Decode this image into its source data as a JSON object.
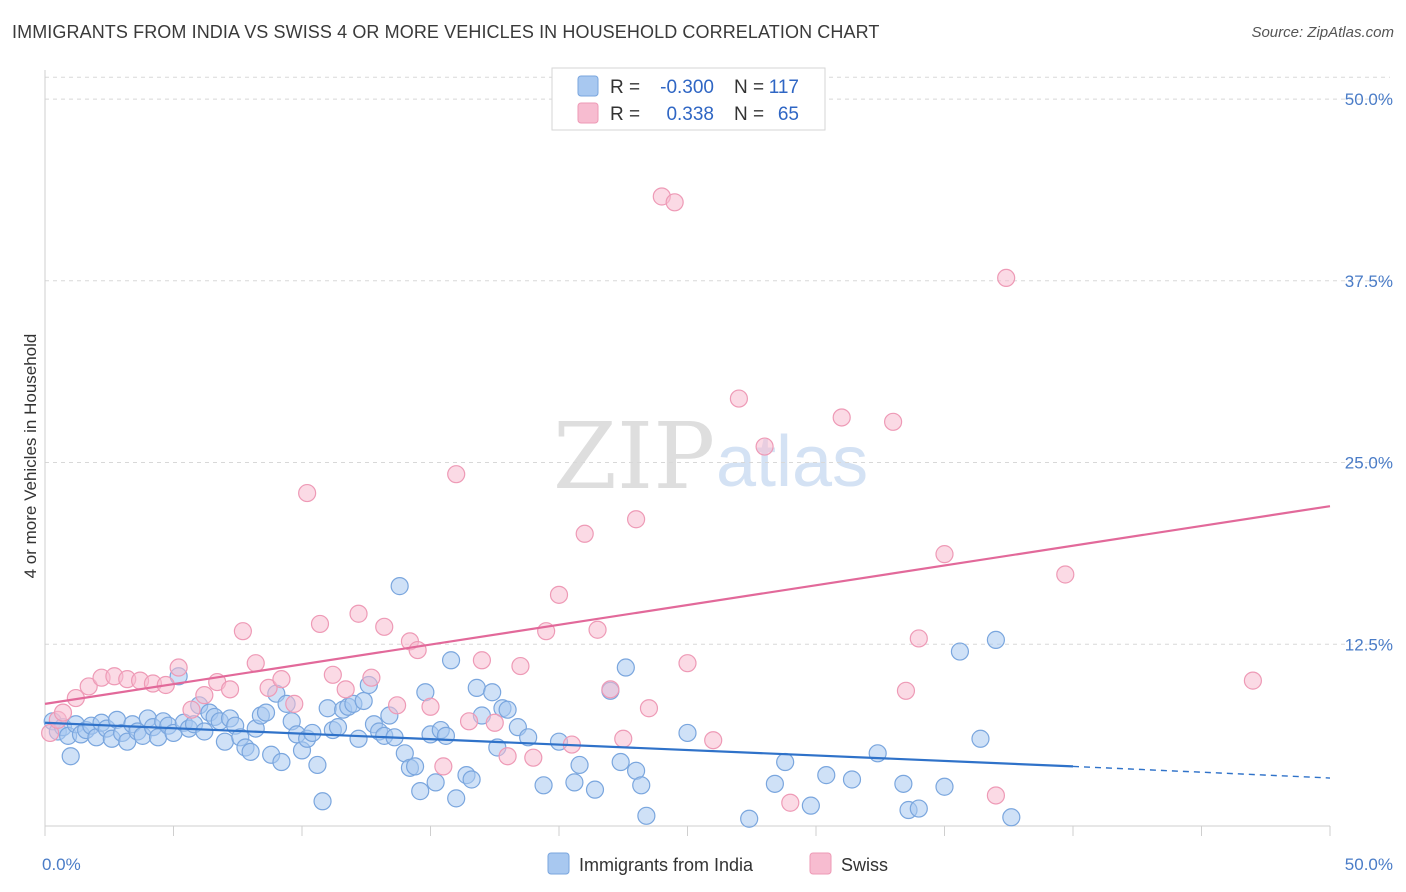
{
  "title": "IMMIGRANTS FROM INDIA VS SWISS 4 OR MORE VEHICLES IN HOUSEHOLD CORRELATION CHART",
  "source": "Source: ZipAtlas.com",
  "watermark": {
    "zip": "ZIP",
    "atlas": "atlas"
  },
  "colors": {
    "india_fill": "#a8c8f0",
    "india_stroke": "#7aa6de",
    "india_line": "#2f72c9",
    "swiss_fill": "#f7bcd0",
    "swiss_stroke": "#ee9ab6",
    "swiss_line": "#e2699a",
    "grid": "#d8d8d8",
    "tick_text": "#4a7cc7"
  },
  "legend": {
    "r_label": "R =",
    "n_label": "N =",
    "rows": [
      {
        "r": "-0.300",
        "n": "117"
      },
      {
        "r": "0.338",
        "n": "65"
      }
    ]
  },
  "chart_data": {
    "type": "scatter",
    "title": "IMMIGRANTS FROM INDIA VS SWISS 4 OR MORE VEHICLES IN HOUSEHOLD CORRELATION CHART",
    "xlabel": "",
    "ylabel": "4 or more Vehicles in Household",
    "xlim": [
      0,
      50
    ],
    "ylim": [
      0,
      52
    ],
    "x_tick_labels": [
      "0.0%",
      "50.0%"
    ],
    "y_ticks": [
      12.5,
      25.0,
      37.5,
      50.0
    ],
    "y_tick_labels": [
      "12.5%",
      "25.0%",
      "37.5%",
      "50.0%"
    ],
    "grid": true,
    "legend_position": "top-center",
    "series": [
      {
        "name": "Immigrants from India",
        "r": -0.3,
        "n": 117,
        "trend": {
          "x0": 0,
          "y0": 7.1,
          "x1": 40,
          "y1": 4.1,
          "dashed_to_x": 50,
          "dashed_to_y": 3.3
        },
        "points": [
          [
            0.3,
            7.2
          ],
          [
            0.5,
            6.5
          ],
          [
            0.7,
            6.8
          ],
          [
            0.9,
            6.2
          ],
          [
            1.0,
            4.8
          ],
          [
            1.2,
            7.0
          ],
          [
            1.4,
            6.3
          ],
          [
            1.6,
            6.6
          ],
          [
            1.8,
            6.9
          ],
          [
            2.0,
            6.1
          ],
          [
            2.2,
            7.1
          ],
          [
            2.4,
            6.7
          ],
          [
            2.6,
            6.0
          ],
          [
            2.8,
            7.3
          ],
          [
            3.0,
            6.4
          ],
          [
            3.2,
            5.8
          ],
          [
            3.4,
            7.0
          ],
          [
            3.6,
            6.5
          ],
          [
            3.8,
            6.2
          ],
          [
            4.0,
            7.4
          ],
          [
            4.2,
            6.8
          ],
          [
            4.4,
            6.1
          ],
          [
            4.6,
            7.2
          ],
          [
            4.8,
            6.9
          ],
          [
            5.0,
            6.4
          ],
          [
            5.2,
            10.3
          ],
          [
            5.4,
            7.1
          ],
          [
            5.6,
            6.7
          ],
          [
            5.8,
            7.0
          ],
          [
            6.0,
            8.3
          ],
          [
            6.2,
            6.5
          ],
          [
            6.4,
            7.8
          ],
          [
            6.6,
            7.5
          ],
          [
            6.8,
            7.2
          ],
          [
            7.0,
            5.8
          ],
          [
            7.2,
            7.4
          ],
          [
            7.4,
            6.9
          ],
          [
            7.6,
            6.1
          ],
          [
            7.8,
            5.4
          ],
          [
            8.0,
            5.1
          ],
          [
            8.2,
            6.7
          ],
          [
            8.4,
            7.6
          ],
          [
            8.6,
            7.8
          ],
          [
            8.8,
            4.9
          ],
          [
            9.0,
            9.1
          ],
          [
            9.2,
            4.4
          ],
          [
            9.4,
            8.4
          ],
          [
            9.6,
            7.2
          ],
          [
            9.8,
            6.3
          ],
          [
            10.0,
            5.2
          ],
          [
            10.2,
            6.0
          ],
          [
            10.4,
            6.4
          ],
          [
            10.6,
            4.2
          ],
          [
            10.8,
            1.7
          ],
          [
            11.0,
            8.1
          ],
          [
            11.2,
            6.6
          ],
          [
            11.4,
            6.8
          ],
          [
            11.6,
            8.0
          ],
          [
            11.8,
            8.2
          ],
          [
            12.0,
            8.4
          ],
          [
            12.2,
            6.0
          ],
          [
            12.4,
            8.6
          ],
          [
            12.6,
            9.7
          ],
          [
            12.8,
            7.0
          ],
          [
            13.0,
            6.5
          ],
          [
            13.2,
            6.2
          ],
          [
            13.4,
            7.6
          ],
          [
            13.6,
            6.1
          ],
          [
            13.8,
            16.5
          ],
          [
            14.0,
            5.0
          ],
          [
            14.2,
            4.0
          ],
          [
            14.4,
            4.1
          ],
          [
            14.6,
            2.4
          ],
          [
            14.8,
            9.2
          ],
          [
            15.0,
            6.3
          ],
          [
            15.2,
            3.0
          ],
          [
            15.4,
            6.6
          ],
          [
            15.6,
            6.2
          ],
          [
            15.8,
            11.4
          ],
          [
            16.0,
            1.9
          ],
          [
            16.4,
            3.5
          ],
          [
            16.6,
            3.2
          ],
          [
            16.8,
            9.5
          ],
          [
            17.0,
            7.6
          ],
          [
            17.4,
            9.2
          ],
          [
            17.6,
            5.4
          ],
          [
            17.8,
            8.1
          ],
          [
            18.0,
            8.0
          ],
          [
            18.4,
            6.8
          ],
          [
            18.8,
            6.1
          ],
          [
            19.4,
            2.8
          ],
          [
            20.0,
            5.8
          ],
          [
            20.6,
            3.0
          ],
          [
            20.8,
            4.2
          ],
          [
            21.4,
            2.5
          ],
          [
            22.0,
            9.3
          ],
          [
            22.4,
            4.4
          ],
          [
            22.6,
            10.9
          ],
          [
            23.0,
            3.8
          ],
          [
            23.2,
            2.8
          ],
          [
            23.4,
            0.7
          ],
          [
            25.0,
            6.4
          ],
          [
            27.4,
            0.5
          ],
          [
            28.4,
            2.9
          ],
          [
            28.8,
            4.4
          ],
          [
            29.8,
            1.4
          ],
          [
            30.4,
            3.5
          ],
          [
            31.4,
            3.2
          ],
          [
            32.4,
            5.0
          ],
          [
            33.4,
            2.9
          ],
          [
            33.6,
            1.1
          ],
          [
            35.0,
            2.7
          ],
          [
            35.6,
            12.0
          ],
          [
            36.4,
            6.0
          ],
          [
            37.0,
            12.8
          ],
          [
            37.6,
            0.6
          ],
          [
            34.0,
            1.2
          ]
        ]
      },
      {
        "name": "Swiss",
        "r": 0.338,
        "n": 65,
        "trend": {
          "x0": 0,
          "y0": 8.4,
          "x1": 50,
          "y1": 22.0
        },
        "points": [
          [
            0.2,
            6.4
          ],
          [
            0.5,
            7.3
          ],
          [
            0.7,
            7.8
          ],
          [
            1.2,
            8.8
          ],
          [
            1.7,
            9.6
          ],
          [
            2.2,
            10.2
          ],
          [
            2.7,
            10.3
          ],
          [
            3.2,
            10.1
          ],
          [
            3.7,
            10.0
          ],
          [
            4.2,
            9.8
          ],
          [
            4.7,
            9.7
          ],
          [
            5.2,
            10.9
          ],
          [
            5.7,
            8.0
          ],
          [
            6.2,
            9.0
          ],
          [
            6.7,
            9.9
          ],
          [
            7.2,
            9.4
          ],
          [
            7.7,
            13.4
          ],
          [
            8.2,
            11.2
          ],
          [
            8.7,
            9.5
          ],
          [
            9.2,
            10.1
          ],
          [
            9.7,
            8.4
          ],
          [
            10.2,
            22.9
          ],
          [
            10.7,
            13.9
          ],
          [
            11.2,
            10.4
          ],
          [
            11.7,
            9.4
          ],
          [
            12.2,
            14.6
          ],
          [
            12.7,
            10.2
          ],
          [
            13.2,
            13.7
          ],
          [
            13.7,
            8.3
          ],
          [
            14.2,
            12.7
          ],
          [
            14.5,
            12.1
          ],
          [
            15.0,
            8.2
          ],
          [
            15.5,
            4.1
          ],
          [
            16.0,
            24.2
          ],
          [
            16.5,
            7.2
          ],
          [
            17.0,
            11.4
          ],
          [
            17.5,
            7.1
          ],
          [
            18.0,
            4.8
          ],
          [
            18.5,
            11.0
          ],
          [
            19.0,
            4.7
          ],
          [
            19.5,
            13.4
          ],
          [
            20.0,
            15.9
          ],
          [
            20.5,
            5.6
          ],
          [
            21.0,
            20.1
          ],
          [
            21.5,
            13.5
          ],
          [
            22.0,
            9.4
          ],
          [
            22.5,
            6.0
          ],
          [
            23.0,
            21.1
          ],
          [
            23.5,
            8.1
          ],
          [
            24.0,
            43.3
          ],
          [
            24.5,
            42.9
          ],
          [
            25.0,
            11.2
          ],
          [
            26.0,
            5.9
          ],
          [
            27.0,
            29.4
          ],
          [
            28.0,
            26.1
          ],
          [
            29.0,
            1.6
          ],
          [
            31.0,
            28.1
          ],
          [
            33.0,
            27.8
          ],
          [
            33.5,
            9.3
          ],
          [
            34.0,
            12.9
          ],
          [
            35.0,
            18.7
          ],
          [
            37.0,
            2.1
          ],
          [
            37.4,
            37.7
          ],
          [
            39.7,
            17.3
          ],
          [
            47.0,
            10.0
          ]
        ]
      }
    ]
  },
  "bottom_legend": [
    "Immigrants from India",
    "Swiss"
  ]
}
